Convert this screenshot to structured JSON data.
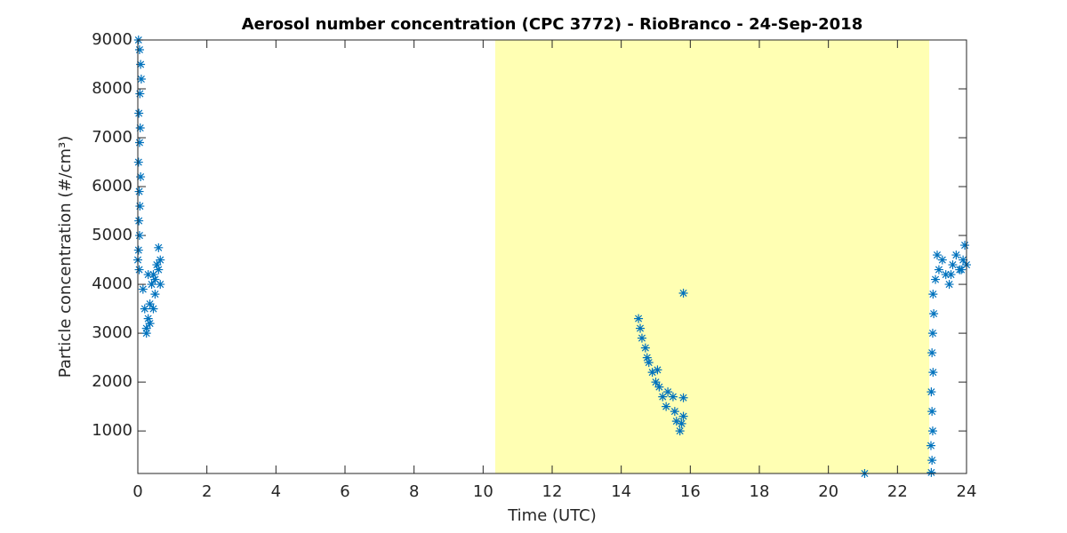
{
  "chart_data": {
    "type": "scatter",
    "title": "Aerosol number concentration (CPC 3772) - RioBranco - 24-Sep-2018",
    "x_label": "Time (UTC)",
    "y_label": "Particle concentration (#/cm³)",
    "color": "#0072bd",
    "shaded_span": [
      10.35,
      22.92
    ],
    "shaded_color": "#ffffb3",
    "xlim": [
      0,
      24
    ],
    "ylim": [
      130,
      9000
    ],
    "xticks": [
      0,
      2,
      4,
      6,
      8,
      10,
      12,
      14,
      16,
      18,
      20,
      22,
      24
    ],
    "yticks": [
      1000,
      2000,
      3000,
      4000,
      5000,
      6000,
      7000,
      8000,
      9000
    ],
    "x": [
      0.02,
      0.05,
      0.08,
      0.1,
      0.06,
      0.03,
      0.07,
      0.05,
      0.02,
      0.08,
      0.04,
      0.06,
      0.03,
      0.05,
      0.02,
      0.0,
      0.04,
      0.15,
      0.2,
      0.25,
      0.3,
      0.35,
      0.4,
      0.45,
      0.5,
      0.55,
      0.6,
      0.65,
      0.6,
      0.25,
      0.35,
      0.5,
      0.45,
      0.65,
      0.3,
      14.5,
      14.55,
      14.6,
      14.7,
      14.75,
      14.8,
      14.9,
      15.0,
      15.05,
      15.1,
      15.2,
      15.3,
      15.35,
      15.5,
      15.55,
      15.6,
      15.7,
      15.75,
      15.8,
      15.8,
      15.8,
      21.05,
      22.98,
      23.0,
      22.97,
      23.02,
      23.0,
      22.98,
      23.03,
      23.0,
      23.02,
      23.05,
      23.03,
      23.1,
      23.2,
      23.3,
      23.4,
      23.5,
      23.6,
      23.7,
      23.8,
      23.9,
      23.95,
      24.0,
      23.15,
      23.55,
      23.85
    ],
    "values": [
      9000,
      8800,
      8500,
      8200,
      7900,
      7500,
      7200,
      6900,
      6500,
      6200,
      5900,
      5600,
      5300,
      5000,
      4700,
      4500,
      4300,
      3900,
      3500,
      3100,
      3300,
      3600,
      4000,
      4200,
      3800,
      4400,
      4300,
      4500,
      4750,
      3000,
      3200,
      4100,
      3500,
      4000,
      4200,
      3300,
      3100,
      2900,
      2700,
      2500,
      2400,
      2200,
      2000,
      2250,
      1900,
      1700,
      1500,
      1800,
      1700,
      1400,
      1200,
      1000,
      1150,
      1300,
      1680,
      3820,
      130,
      150,
      400,
      700,
      1000,
      1400,
      1800,
      2200,
      2600,
      3000,
      3400,
      3800,
      4100,
      4300,
      4500,
      4200,
      4000,
      4400,
      4600,
      4300,
      4500,
      4800,
      4400,
      4600,
      4200,
      4300
    ]
  }
}
